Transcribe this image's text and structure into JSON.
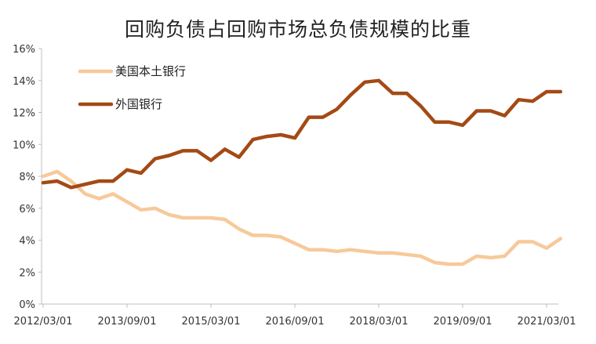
{
  "chart_data": {
    "type": "line",
    "title": "回购负债占回购市场总负债规模的比重",
    "xlabel": "",
    "ylabel": "",
    "ylim": [
      0,
      16
    ],
    "yticks": [
      "0%",
      "2%",
      "4%",
      "6%",
      "8%",
      "10%",
      "12%",
      "14%",
      "16%"
    ],
    "x_ticks": [
      "2012/03/01",
      "2013/09/01",
      "2015/03/01",
      "2016/09/01",
      "2018/03/01",
      "2019/09/01",
      "2021/03/01"
    ],
    "x": [
      "2012/03",
      "2012/06",
      "2012/09",
      "2012/12",
      "2013/03",
      "2013/06",
      "2013/09",
      "2013/12",
      "2014/03",
      "2014/06",
      "2014/09",
      "2014/12",
      "2015/03",
      "2015/06",
      "2015/09",
      "2015/12",
      "2016/03",
      "2016/06",
      "2016/09",
      "2016/12",
      "2017/03",
      "2017/06",
      "2017/09",
      "2017/12",
      "2018/03",
      "2018/06",
      "2018/09",
      "2018/12",
      "2019/03",
      "2019/06",
      "2019/09",
      "2019/12",
      "2020/03",
      "2020/06",
      "2020/09",
      "2020/12",
      "2021/03",
      "2021/06"
    ],
    "series": [
      {
        "name": "美国本土银行",
        "color": "#f7c99a",
        "values": [
          8.0,
          8.3,
          7.7,
          6.9,
          6.6,
          6.9,
          6.4,
          5.9,
          6.0,
          5.6,
          5.4,
          5.4,
          5.4,
          5.3,
          4.7,
          4.3,
          4.3,
          4.2,
          3.8,
          3.4,
          3.4,
          3.3,
          3.4,
          3.3,
          3.2,
          3.2,
          3.1,
          3.0,
          2.6,
          2.5,
          2.5,
          3.0,
          2.9,
          3.0,
          3.9,
          3.9,
          3.5,
          4.1
        ]
      },
      {
        "name": "外国银行",
        "color": "#a34a15",
        "values": [
          7.6,
          7.7,
          7.3,
          7.5,
          7.7,
          7.7,
          8.4,
          8.2,
          9.1,
          9.3,
          9.6,
          9.6,
          9.0,
          9.7,
          9.2,
          10.3,
          10.5,
          10.6,
          10.4,
          11.7,
          11.7,
          12.2,
          13.1,
          13.9,
          14.0,
          13.2,
          13.2,
          12.4,
          11.4,
          11.4,
          11.2,
          12.1,
          12.1,
          11.8,
          12.8,
          12.7,
          13.3,
          13.3
        ]
      }
    ],
    "legend_position": "top-left"
  }
}
